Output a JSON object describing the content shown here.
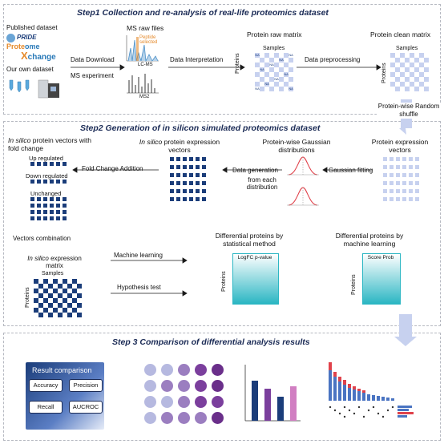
{
  "step1": {
    "title": "Step1 Collection and re-analysis of real-life proteomics dataset",
    "published_dataset": "Published dataset",
    "own_dataset": "Our own dataset",
    "pride_logo": "PRIDE Proteome Xchange",
    "ms_raw_files": "MS raw files",
    "lcms_label": "LC-MS",
    "peptide_selected": "Peptide selected",
    "ms2_label": "MS2",
    "data_download": "Data Download",
    "ms_experiment": "MS experiment",
    "data_interpretation": "Data Interpretation",
    "raw_matrix_title": "Protein raw matrix",
    "samples": "Samples",
    "proteins": "Proteins",
    "na": "NA",
    "data_preprocessing": "Data preprocessing",
    "clean_matrix_title": "Protein clean matrix",
    "shuffle_label": "Protein-wise Random shuffle"
  },
  "step2": {
    "title": "Step2 Generation of in silicon simulated proteomics dataset",
    "fold_change_title_italic": "In silico",
    "fold_change_title_rest": "protein vectors with fold change",
    "up_regulated": "Up regulated",
    "down_regulated": "Down regulated",
    "unchanged": "Unchanged",
    "fold_change_addition": "Fold Change Addition",
    "expr_vectors_italic": "In silico",
    "expr_vectors_rest": "protein expression vectors",
    "gaussian_title": "Protein-wise Gaussian distributions",
    "data_generation": "Data generation",
    "from_each_distribution": "from each distribution",
    "gaussian_fitting": "Gaussian fitting",
    "protein_expression_vectors": "Protein expression vectors",
    "vectors_combination": "Vectors combination",
    "matrix_title_italic": "In silico",
    "matrix_title_rest": "expression matrix",
    "samples": "Samples",
    "proteins": "Proteins",
    "machine_learning": "Machine learning",
    "hypothesis_test": "Hypothesis test",
    "stat_title": "Differential proteins by statistical method",
    "stat_header": "LogFC p-value",
    "ml_title": "Differential proteins by machine learning",
    "ml_header": "Score Prob"
  },
  "step3": {
    "title": "Step 3 Comparison of differential analysis results",
    "result_comparison": "Result comparison",
    "accuracy": "Accuracy",
    "precision": "Precision",
    "recall": "Recall",
    "aucroc": "AUCROC"
  },
  "colors": {
    "dark_blue": "#1b3d7a",
    "light_blue": "#c7d1ef",
    "teal_top": "#2bb6c3",
    "purple": "#7b3f9d",
    "pink": "#d17fc2",
    "red": "#e0424b"
  }
}
